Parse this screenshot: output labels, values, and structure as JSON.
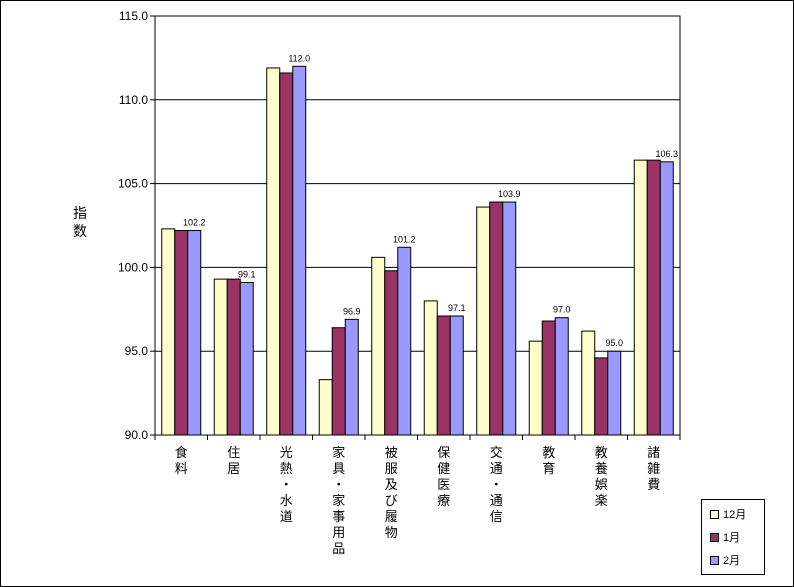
{
  "chart_data": {
    "type": "bar",
    "ylabel": "指数",
    "ylim": [
      90,
      115
    ],
    "yticks": [
      "90.0",
      "95.0",
      "100.0",
      "105.0",
      "110.0",
      "115.0"
    ],
    "categories": [
      "食料",
      "住居",
      "光熱・水道",
      "家具・家事用品",
      "被服及び履物",
      "保健医療",
      "交通・通信",
      "教育",
      "教養娯楽",
      "諸雑費"
    ],
    "series": [
      {
        "name": "12月",
        "color": "#ffffcc",
        "values": [
          102.3,
          99.3,
          111.9,
          93.3,
          100.6,
          98.0,
          103.6,
          95.6,
          96.2,
          106.4
        ]
      },
      {
        "name": "1月",
        "color": "#993366",
        "values": [
          102.2,
          99.3,
          111.6,
          96.4,
          99.8,
          97.1,
          103.9,
          96.8,
          94.6,
          106.4
        ]
      },
      {
        "name": "2月",
        "color": "#9999ff",
        "values": [
          102.2,
          99.1,
          112.0,
          96.9,
          101.2,
          97.1,
          103.9,
          97.0,
          95.0,
          106.3
        ]
      }
    ],
    "data_labels": [
      "102.2",
      "99.1",
      "112.0",
      "96.9",
      "101.2",
      "97.1",
      "103.9",
      "97.0",
      "95.0",
      "106.3"
    ],
    "grid": true,
    "legend": "bottom-right"
  }
}
